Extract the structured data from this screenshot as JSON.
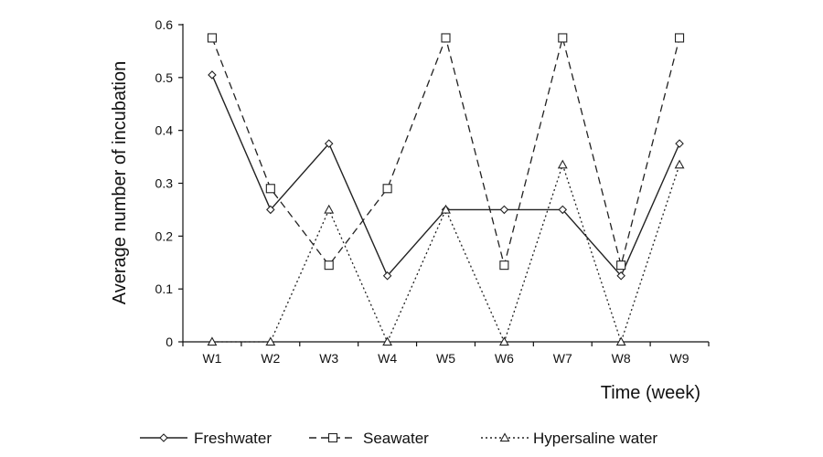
{
  "chart_data": {
    "type": "line",
    "xlabel": "Time (week)",
    "ylabel": "Average number of incubation",
    "categories": [
      "W1",
      "W2",
      "W3",
      "W4",
      "W5",
      "W6",
      "W7",
      "W8",
      "W9"
    ],
    "ylim": [
      0,
      0.6
    ],
    "yticks": [
      0,
      0.1,
      0.2,
      0.3,
      0.4,
      0.5,
      0.6
    ],
    "ytick_labels": [
      "0",
      "0.1",
      "0.2",
      "0.3",
      "0.4",
      "0.5",
      "0.6"
    ],
    "grid": false,
    "legend_position": "bottom",
    "series": [
      {
        "name": "Freshwater",
        "marker": "diamond",
        "line_style": "solid",
        "color": "#222222",
        "values": [
          0.505,
          0.25,
          0.375,
          0.125,
          0.25,
          0.25,
          0.25,
          0.125,
          0.375
        ]
      },
      {
        "name": "Seawater",
        "marker": "square",
        "line_style": "dashed",
        "color": "#222222",
        "values": [
          0.575,
          0.29,
          0.145,
          0.29,
          0.575,
          0.145,
          0.575,
          0.145,
          0.575
        ]
      },
      {
        "name": "Hypersaline water",
        "marker": "triangle",
        "line_style": "dotted",
        "color": "#222222",
        "values": [
          0,
          0,
          0.25,
          0,
          0.25,
          0,
          0.335,
          0,
          0.335
        ]
      }
    ]
  }
}
